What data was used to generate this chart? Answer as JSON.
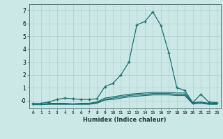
{
  "xlabel": "Humidex (Indice chaleur)",
  "x_values": [
    0,
    1,
    2,
    3,
    4,
    5,
    6,
    7,
    8,
    9,
    10,
    11,
    12,
    13,
    14,
    15,
    16,
    17,
    18,
    19,
    20,
    21,
    22,
    23
  ],
  "line1": [
    -0.2,
    -0.2,
    -0.1,
    0.1,
    0.2,
    0.15,
    0.1,
    0.1,
    0.15,
    1.1,
    1.35,
    2.0,
    3.0,
    5.9,
    6.15,
    6.9,
    5.85,
    3.7,
    1.0,
    0.8,
    -0.15,
    0.5,
    -0.1,
    -0.15
  ],
  "line2": [
    -0.3,
    -0.3,
    -0.2,
    -0.2,
    -0.2,
    -0.25,
    -0.2,
    -0.2,
    -0.1,
    0.2,
    0.3,
    0.4,
    0.5,
    0.55,
    0.6,
    0.65,
    0.65,
    0.65,
    0.6,
    0.6,
    -0.15,
    -0.1,
    -0.2,
    -0.2
  ],
  "line3": [
    -0.3,
    -0.3,
    -0.25,
    -0.25,
    -0.25,
    -0.25,
    -0.25,
    -0.25,
    -0.15,
    0.1,
    0.2,
    0.3,
    0.4,
    0.45,
    0.5,
    0.55,
    0.55,
    0.55,
    0.5,
    0.5,
    -0.2,
    -0.15,
    -0.25,
    -0.25
  ],
  "line4": [
    -0.3,
    -0.3,
    -0.28,
    -0.28,
    -0.28,
    -0.28,
    -0.28,
    -0.28,
    -0.2,
    0.05,
    0.1,
    0.2,
    0.3,
    0.35,
    0.4,
    0.45,
    0.45,
    0.45,
    0.4,
    0.4,
    -0.25,
    -0.2,
    -0.28,
    -0.28
  ],
  "bg_color": "#cce8e6",
  "grid_color": "#aacfcd",
  "line_color": "#1a7070",
  "ylim": [
    -0.6,
    7.5
  ],
  "yticks": [
    0,
    1,
    2,
    3,
    4,
    5,
    6,
    7
  ],
  "ytick_labels": [
    "-0",
    "1",
    "2",
    "3",
    "4",
    "5",
    "6",
    "7"
  ],
  "xtick_labels": [
    "0",
    "1",
    "2",
    "3",
    "4",
    "5",
    "6",
    "7",
    "8",
    "9",
    "10",
    "11",
    "12",
    "13",
    "14",
    "15",
    "16",
    "17",
    "18",
    "19",
    "20",
    "21",
    "22",
    "23"
  ]
}
